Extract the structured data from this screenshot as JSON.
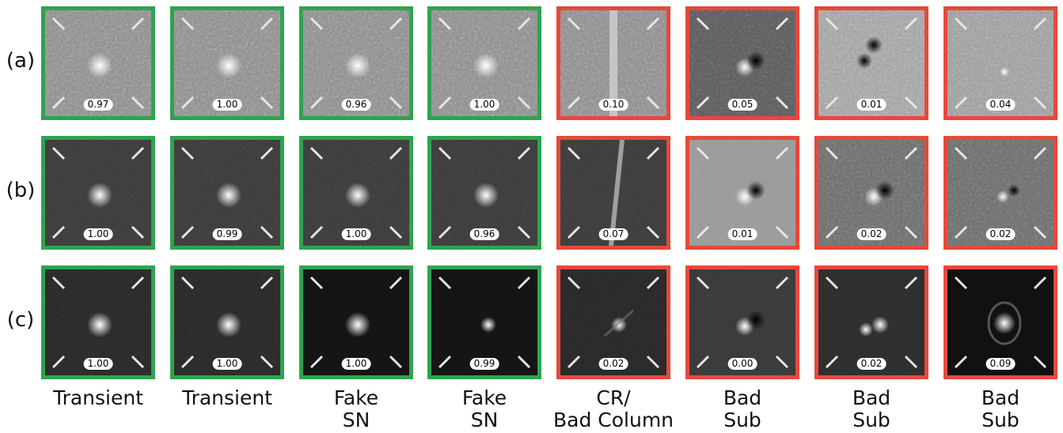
{
  "row_labels": [
    "(a)",
    "(b)",
    "(c)"
  ],
  "column_labels": [
    "Transient",
    "Transient",
    "Fake\nSN",
    "Fake\nSN",
    "CR/\nBad Column",
    "Bad\nSub",
    "Bad\nSub",
    "Bad\nSub"
  ],
  "colors": {
    "real_frame": "#2ea44f",
    "bogus_frame": "#e8483a"
  },
  "rows": [
    {
      "scores": [
        "0.97",
        "1.00",
        "0.96",
        "1.00",
        "0.10",
        "0.05",
        "0.01",
        "0.04"
      ]
    },
    {
      "scores": [
        "1.00",
        "0.99",
        "1.00",
        "0.96",
        "0.07",
        "0.01",
        "0.02",
        "0.02"
      ]
    },
    {
      "scores": [
        "1.00",
        "1.00",
        "1.00",
        "0.99",
        "0.02",
        "0.00",
        "0.02",
        "0.09"
      ]
    }
  ]
}
